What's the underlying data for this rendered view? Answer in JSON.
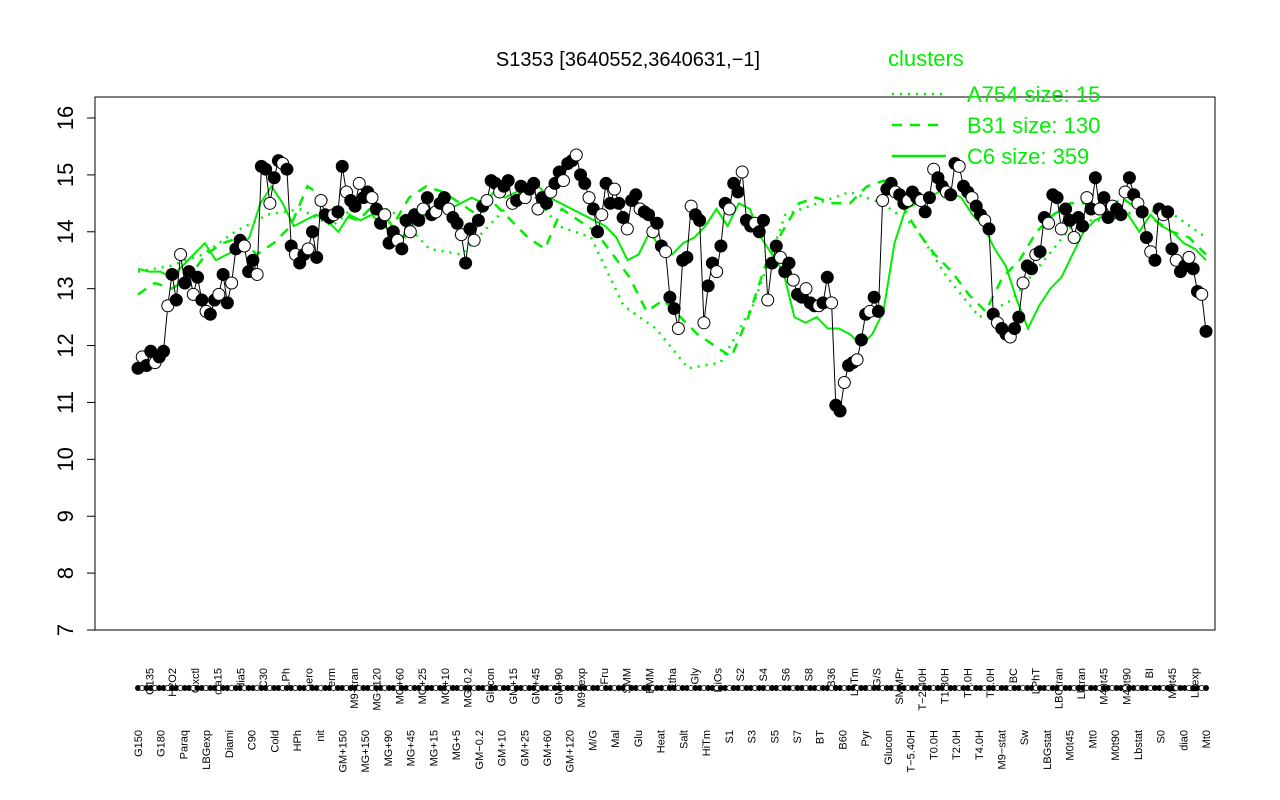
{
  "chart_data": {
    "type": "line",
    "title": "S1353 [3640552,3640631,−1]",
    "xlabel": "",
    "ylabel": "",
    "ylim": [
      7,
      16
    ],
    "y_ticks": [
      7,
      8,
      9,
      10,
      11,
      12,
      13,
      14,
      15,
      16
    ],
    "grid": false,
    "legend": {
      "title": "clusters",
      "placement": "top-right",
      "entries": [
        {
          "label": "A754 size: 15",
          "style": "dotted"
        },
        {
          "label": "B31 size: 130",
          "style": "dashed"
        },
        {
          "label": "C6 size: 359",
          "style": "solid"
        }
      ]
    },
    "x_tick_labels": [
      "G150",
      "G135",
      "G180",
      "H2O2",
      "Paraq",
      "Oxctl",
      "LBGexp",
      "dia15",
      "Diami",
      "dia5",
      "C90",
      "C30",
      "Cold",
      "LPh",
      "HPh",
      "aero",
      "nit",
      "ferm",
      "GM+150",
      "M9−tran",
      "MG+150",
      "MG+120",
      "MG+90",
      "MG+60",
      "MG+45",
      "MG+25",
      "MG+15",
      "MG+10",
      "MG+5",
      "MG−0.2",
      "GM−0.2",
      "Glucon",
      "GM+10",
      "GM+15",
      "GM+25",
      "GM+45",
      "GM+60",
      "GM+90",
      "GM+120",
      "M9−exp",
      "M/G",
      "Fru",
      "Mal",
      "SMM",
      "Glu",
      "BMM",
      "Heat",
      "Etha",
      "Salt",
      "Gly",
      "HiTm",
      "HiOs",
      "S1",
      "S2",
      "S3",
      "S4",
      "S5",
      "S6",
      "S7",
      "S8",
      "BT",
      "B36",
      "B60",
      "LoTm",
      "Pyr",
      "G/S",
      "Glucon",
      "SMMPr",
      "T−5.40H",
      "T−2.40H",
      "T0.0H",
      "T1.30H",
      "T2.0H",
      "T3.0H",
      "T4.0H",
      "T5.0H",
      "M9−stat",
      "BC",
      "Sw",
      "LPhT",
      "LBGstat",
      "LBGtran",
      "M0t45",
      "Lbtran",
      "Mt0",
      "M40t45",
      "M0t90",
      "M40t90",
      "Lbstat",
      "BI",
      "S0",
      "M0t45",
      "dia0",
      "Lbexp",
      "Mt0"
    ],
    "series": [
      {
        "style": "points",
        "values": [
          11.6,
          11.8,
          11.65,
          11.9,
          11.7,
          11.8,
          11.9,
          12.7,
          13.25,
          12.8,
          13.6,
          13.1,
          13.3,
          12.9,
          13.2,
          12.8,
          12.6,
          12.55,
          12.8,
          12.9,
          13.25,
          12.75,
          13.1,
          13.7,
          13.85,
          13.75,
          13.3,
          13.5,
          13.25,
          15.15,
          15.1,
          14.5,
          14.95,
          15.25,
          15.2,
          15.1,
          13.75,
          13.6,
          13.45,
          13.6,
          13.7,
          14.0,
          13.55,
          14.55,
          14.3,
          14.25,
          14.3,
          14.35,
          15.15,
          14.7,
          14.55,
          14.45,
          14.85,
          14.6,
          14.7,
          14.6,
          14.4,
          14.15,
          14.3,
          13.8,
          14.0,
          13.85,
          13.7,
          14.2,
          14.0,
          14.3,
          14.2,
          14.4,
          14.6,
          14.3,
          14.35,
          14.5,
          14.6,
          14.4,
          14.25,
          14.15,
          13.95,
          13.45,
          14.05,
          13.85,
          14.2,
          14.45,
          14.55,
          14.9,
          14.85,
          14.7,
          14.8,
          14.9,
          14.5,
          14.55,
          14.8,
          14.6,
          14.75,
          14.85,
          14.4,
          14.6,
          14.5,
          14.7,
          14.85,
          15.05,
          14.9,
          15.2,
          15.25,
          15.35,
          15.0,
          14.85,
          14.6,
          14.4,
          14.0,
          14.3,
          14.85,
          14.5,
          14.75,
          14.5,
          14.25,
          14.05,
          14.55,
          14.65,
          14.4,
          14.35,
          14.3,
          14.0,
          14.15,
          13.75,
          13.65,
          12.85,
          12.65,
          12.3,
          13.5,
          13.55,
          14.45,
          14.3,
          14.2,
          12.4,
          13.05,
          13.45,
          13.3,
          13.75,
          14.5,
          14.4,
          14.85,
          14.7,
          15.05,
          14.2,
          14.1,
          14.15,
          14.0,
          14.2,
          12.8,
          13.45,
          13.75,
          13.55,
          13.3,
          13.45,
          13.15,
          12.9,
          12.85,
          13.0,
          12.75,
          12.7,
          12.7,
          12.75,
          13.2,
          12.75,
          10.95,
          10.85,
          11.35,
          11.65,
          11.7,
          11.75,
          12.1,
          12.55,
          12.6,
          12.85,
          12.6,
          14.55,
          14.75,
          14.85,
          14.7,
          14.65,
          14.5,
          14.55,
          14.7,
          14.6,
          14.55,
          14.35,
          14.6,
          15.1,
          14.95,
          14.8,
          14.7,
          14.65,
          15.2,
          15.15,
          14.8,
          14.7,
          14.6,
          14.45,
          14.3,
          14.2,
          14.05,
          12.55,
          12.4,
          12.3,
          12.2,
          12.15,
          12.3,
          12.5,
          13.1,
          13.4,
          13.35,
          13.6,
          13.65,
          14.25,
          14.15,
          14.65,
          14.6,
          14.05,
          14.4,
          14.2,
          13.9,
          14.25,
          14.1,
          14.6,
          14.4,
          14.95,
          14.4,
          14.6,
          14.25,
          14.45,
          14.4,
          14.3,
          14.7,
          14.95,
          14.65,
          14.5,
          14.35,
          13.9,
          13.65,
          13.5,
          14.4,
          14.3,
          14.35,
          13.7,
          13.5,
          13.3,
          13.4,
          13.55,
          13.35,
          12.95,
          12.9,
          12.25
        ]
      },
      {
        "name": "C6 size: 359",
        "style": "solid",
        "values": [
          13.35,
          13.3,
          13.3,
          13.2,
          13.4,
          13.6,
          13.8,
          13.5,
          13.6,
          13.7,
          13.9,
          14.5,
          14.8,
          14.5,
          14.1,
          14.2,
          14.3,
          14.2,
          14.0,
          14.3,
          14.2,
          14.3,
          14.1,
          14.0,
          13.9,
          14.2,
          14.3,
          14.5,
          14.4,
          14.5,
          14.6,
          14.5,
          14.7,
          14.6,
          14.7,
          14.8,
          14.8,
          14.6,
          14.5,
          14.4,
          14.3,
          14.2,
          14.1,
          13.9,
          13.5,
          13.6,
          14.0,
          13.7,
          13.6,
          13.8,
          13.9,
          14.1,
          14.4,
          14.1,
          14.5,
          14.4,
          13.9,
          13.6,
          13.3,
          12.5,
          12.4,
          12.5,
          12.3,
          12.3,
          12.2,
          12.0,
          12.2,
          12.6,
          13.8,
          14.4,
          14.5,
          14.6,
          14.7,
          14.7,
          14.6,
          14.3,
          14.1,
          13.7,
          13.4,
          12.8,
          12.3,
          12.7,
          13.0,
          13.2,
          13.6,
          14.0,
          14.2,
          14.3,
          14.4,
          14.3,
          14.0,
          14.3,
          14.1,
          14.0,
          13.8,
          13.7,
          13.5
        ]
      },
      {
        "name": "B31 size: 130",
        "style": "dashed",
        "values": [
          12.9,
          13.1,
          13.0,
          13.2,
          13.6,
          13.8,
          13.9,
          13.6,
          13.8,
          14.1,
          14.8,
          14.6,
          14.3,
          14.2,
          14.5,
          14.1,
          14.6,
          14.8,
          14.7,
          14.5,
          14.3,
          14.5,
          14.2,
          13.9,
          13.7,
          14.4,
          14.2,
          14.0,
          13.6,
          13.2,
          12.6,
          12.8,
          12.5,
          12.2,
          12.0,
          11.8,
          12.5,
          13.4,
          14.0,
          14.5,
          14.6,
          14.5,
          14.5,
          14.8,
          14.9,
          14.5,
          14.0,
          13.6,
          13.3,
          12.9,
          12.6,
          13.2,
          13.5,
          14.0,
          14.3,
          14.5,
          14.5,
          14.3,
          14.6,
          14.4,
          14.2,
          14.0,
          13.9,
          13.6
        ]
      },
      {
        "name": "A754 size: 15",
        "style": "dotted",
        "values": [
          13.3,
          13.4,
          13.6,
          14.0,
          14.3,
          14.4,
          14.1,
          14.6,
          14.3,
          13.7,
          13.6,
          14.2,
          14.8,
          14.1,
          13.9,
          12.7,
          12.3,
          11.6,
          11.7,
          12.7,
          14.3,
          14.5,
          14.7,
          14.5,
          14.1,
          13.2,
          12.5,
          12.8,
          13.5,
          14.2,
          14.2,
          14.4,
          14.3,
          13.9
        ]
      }
    ]
  }
}
